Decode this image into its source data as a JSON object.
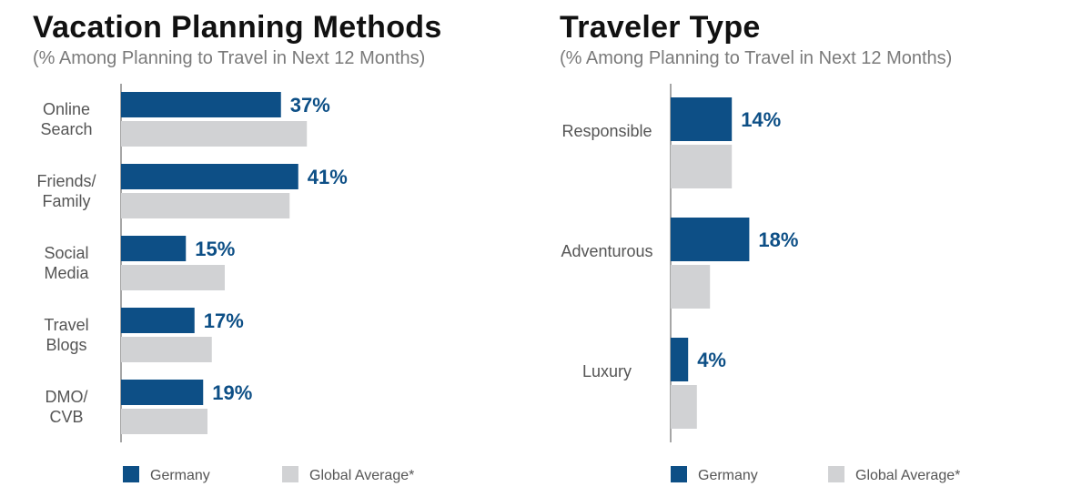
{
  "colors": {
    "germany": "#0d4f86",
    "global": "#d1d2d4",
    "axis": "#888888"
  },
  "legend": {
    "germany": "Germany",
    "global": "Global Average*"
  },
  "chart_data": [
    {
      "type": "bar",
      "orientation": "horizontal",
      "title": "Vacation Planning Methods",
      "subtitle": "(% Among Planning to Travel in Next 12 Months)",
      "categories": [
        [
          "Online",
          "Search"
        ],
        [
          "Friends/",
          "Family"
        ],
        [
          "Social",
          "Media"
        ],
        [
          "Travel",
          "Blogs"
        ],
        [
          "DMO/",
          "CVB"
        ]
      ],
      "series": [
        {
          "name": "Germany",
          "values": [
            37,
            41,
            15,
            17,
            19
          ],
          "labels": [
            "37%",
            "41%",
            "15%",
            "17%",
            "19%"
          ]
        },
        {
          "name": "Global Average*",
          "values": [
            43,
            39,
            24,
            21,
            20
          ]
        }
      ],
      "xlim": [
        0,
        100
      ],
      "legend_position": "bottom"
    },
    {
      "type": "bar",
      "orientation": "horizontal",
      "title": "Traveler Type",
      "subtitle": "(% Among Planning to Travel in Next 12 Months)",
      "categories": [
        [
          "Responsible"
        ],
        [
          "Adventurous"
        ],
        [
          "Luxury"
        ]
      ],
      "series": [
        {
          "name": "Germany",
          "values": [
            14,
            18,
            4
          ],
          "labels": [
            "14%",
            "18%",
            "4%"
          ]
        },
        {
          "name": "Global Average*",
          "values": [
            14,
            9,
            6
          ]
        }
      ],
      "xlim": [
        0,
        100
      ],
      "legend_position": "bottom"
    }
  ]
}
